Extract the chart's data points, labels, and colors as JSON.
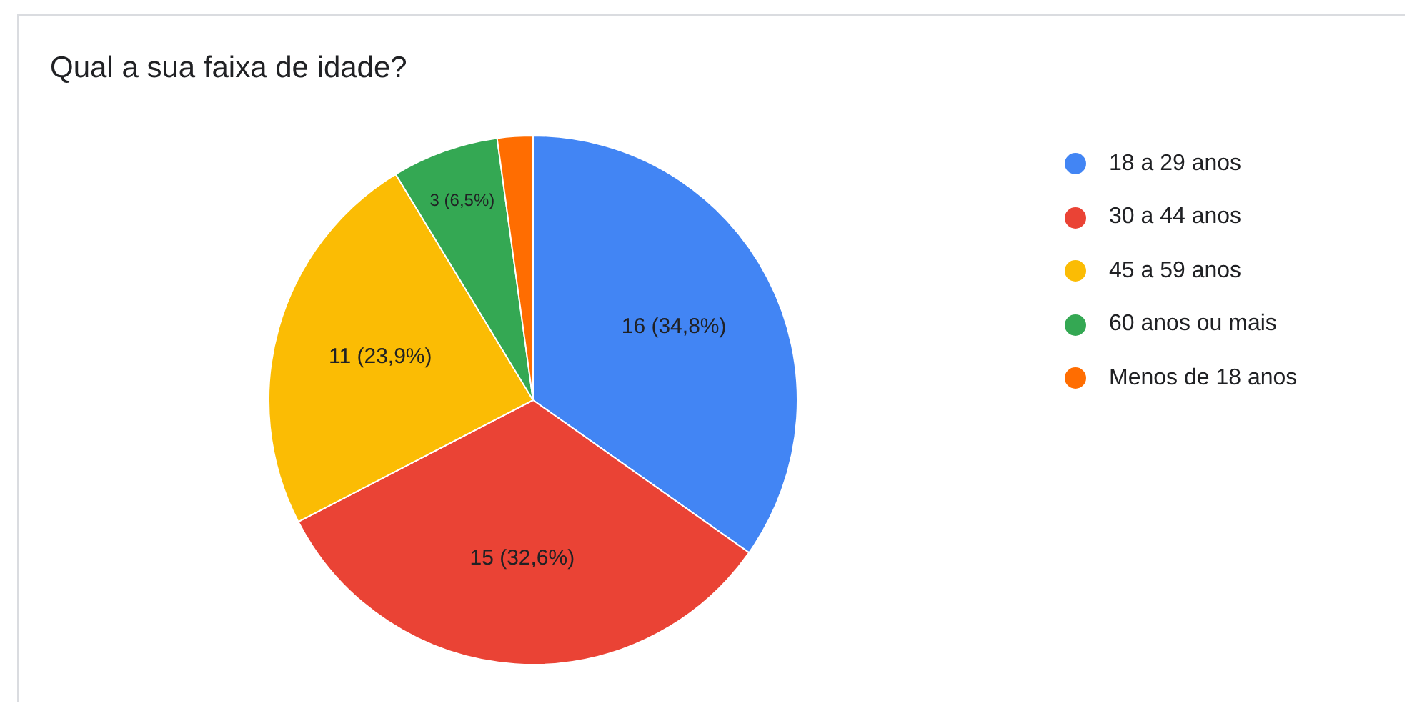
{
  "chart_data": {
    "type": "pie",
    "title": "Qual a sua faixa de idade?",
    "categories": [
      "18 a 29 anos",
      "30 a 44 anos",
      "45 a 59 anos",
      "60 anos ou mais",
      "Menos de 18 anos"
    ],
    "values": [
      16,
      15,
      11,
      3,
      1
    ],
    "colors": [
      "#4285f4",
      "#ea4335",
      "#fbbc04",
      "#34a853",
      "#ff6d01"
    ],
    "value_labels": [
      "16 (34,8%)",
      "15 (32,6%)",
      "11 (23,9%)",
      "3 (6,5%)",
      null
    ],
    "legend": "right"
  }
}
